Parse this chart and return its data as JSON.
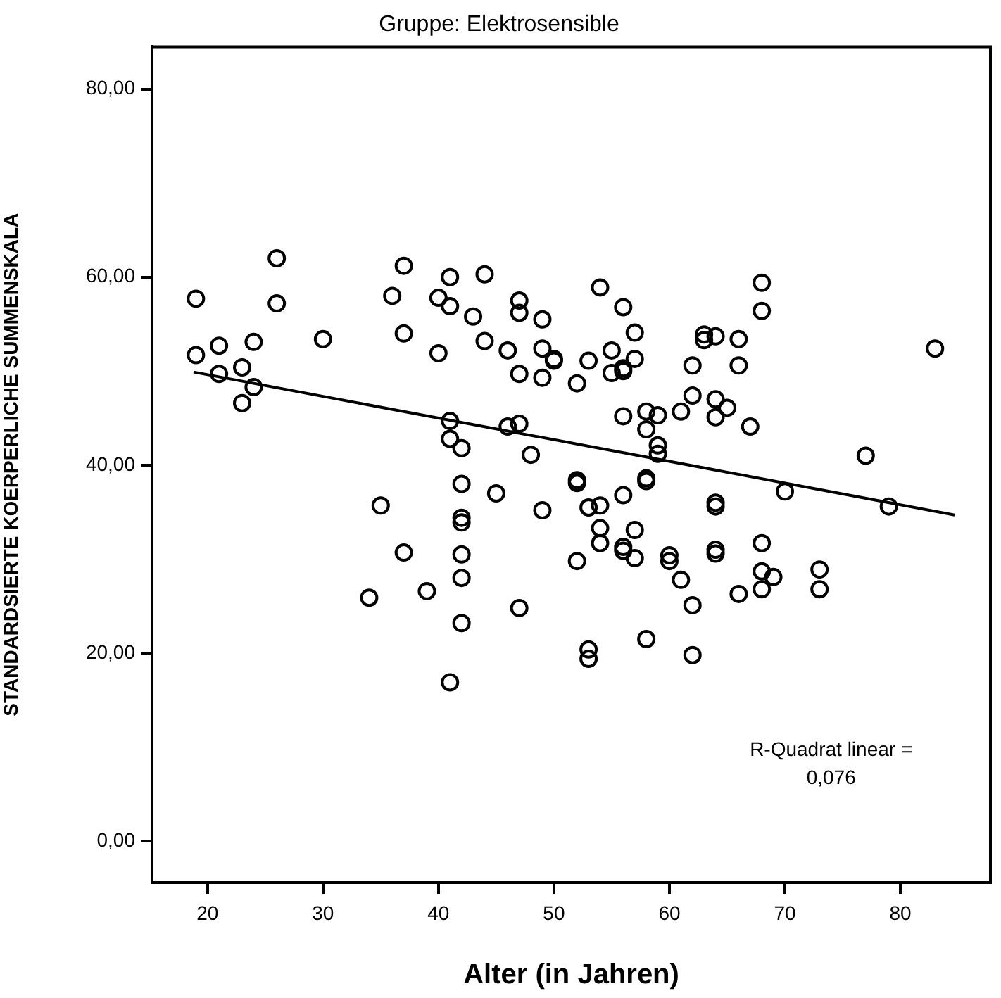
{
  "chart_data": {
    "type": "scatter",
    "title": "Gruppe: Elektrosensible",
    "xlabel": "Alter (in Jahren)",
    "ylabel": "STANDARDSIERTE KOERPERLICHE SUMMENSKALA",
    "annotations": [
      "R-Quadrat linear =\n0,076"
    ],
    "xlim": [
      15.2,
      87.8
    ],
    "xticks": [
      20,
      30,
      40,
      50,
      60,
      70,
      80
    ],
    "ylim": [
      -4.4,
      84.5
    ],
    "yticks": [
      {
        "value": 0,
        "label": "0,00"
      },
      {
        "value": 20,
        "label": "20,00"
      },
      {
        "value": 40,
        "label": "40,00"
      },
      {
        "value": 60,
        "label": "60,00"
      },
      {
        "value": 80,
        "label": "80,00"
      }
    ],
    "grid": false,
    "legend": false,
    "series": [
      {
        "color": "#000000",
        "marker": "circle",
        "x": [
          26,
          19,
          26,
          21,
          24,
          19,
          30,
          23,
          21,
          24,
          23,
          37,
          36,
          40,
          41,
          37,
          40,
          35,
          37,
          34,
          39,
          44,
          41,
          43,
          47,
          47,
          49,
          54,
          56,
          57,
          44,
          46,
          49,
          50,
          50,
          53,
          55,
          56,
          57,
          55,
          56,
          47,
          49,
          52,
          41,
          41,
          42,
          46,
          47,
          48,
          56,
          58,
          59,
          58,
          59,
          59,
          42,
          45,
          52,
          52,
          58,
          58,
          56,
          42,
          42,
          49,
          53,
          54,
          54,
          54,
          56,
          56,
          57,
          57,
          52,
          42,
          42,
          47,
          42,
          53,
          53,
          58,
          60,
          60,
          41,
          68,
          68,
          63,
          63,
          64,
          66,
          83,
          62,
          66,
          62,
          64,
          65,
          61,
          64,
          67,
          77,
          70,
          79,
          64,
          64,
          68,
          64,
          64,
          61,
          62,
          68,
          68,
          69,
          66,
          73,
          73,
          62
        ],
        "values": [
          62.0,
          57.7,
          57.2,
          52.7,
          53.1,
          51.7,
          53.4,
          50.4,
          49.7,
          48.3,
          46.6,
          61.2,
          58.0,
          57.8,
          60.0,
          54.0,
          51.9,
          35.7,
          30.7,
          25.9,
          26.6,
          60.3,
          56.9,
          55.8,
          57.5,
          56.2,
          55.5,
          58.9,
          56.8,
          54.1,
          53.2,
          52.2,
          52.4,
          51.3,
          51.1,
          51.1,
          52.2,
          50.3,
          51.3,
          49.8,
          50.0,
          49.7,
          49.3,
          48.7,
          44.7,
          42.8,
          41.8,
          44.1,
          44.4,
          41.1,
          45.2,
          45.7,
          45.3,
          43.8,
          42.1,
          41.2,
          38.0,
          37.0,
          38.4,
          38.1,
          38.6,
          38.3,
          36.8,
          34.4,
          33.9,
          35.2,
          35.5,
          35.7,
          33.3,
          31.7,
          31.3,
          30.9,
          33.1,
          30.1,
          29.8,
          30.5,
          28.0,
          24.8,
          23.2,
          20.4,
          19.4,
          21.5,
          30.4,
          29.8,
          16.9,
          59.4,
          56.4,
          53.9,
          53.3,
          53.7,
          53.4,
          52.4,
          50.6,
          50.6,
          47.4,
          47.0,
          46.1,
          45.7,
          45.1,
          44.1,
          41.0,
          37.2,
          35.6,
          36.0,
          35.6,
          31.7,
          31.0,
          30.6,
          27.8,
          25.1,
          28.7,
          26.8,
          28.1,
          26.3,
          28.9,
          26.8,
          19.8
        ]
      },
      {
        "type": "line",
        "color": "#000000",
        "marker": "none",
        "line_style": "solid",
        "x": [
          18.8,
          84.7
        ],
        "values": [
          49.9,
          34.7
        ]
      }
    ]
  }
}
